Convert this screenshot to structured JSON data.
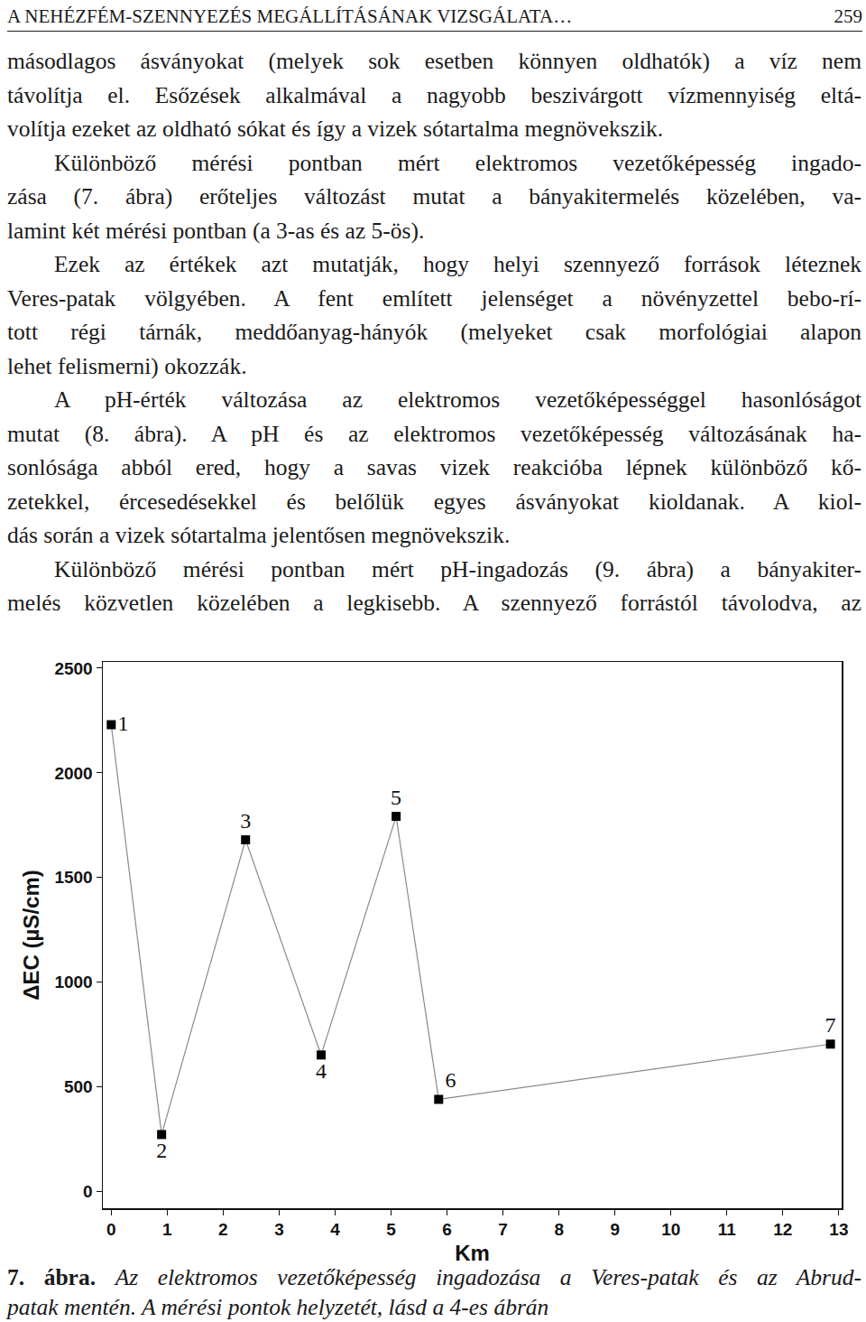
{
  "header": {
    "title": "A NEHÉZFÉM-SZENNYEZÉS MEGÁLLÍTÁSÁNAK VIZSGÁLATA…",
    "page": "259"
  },
  "paragraphs": [
    [
      "másodlagos ásványokat (melyek sok esetben könnyen oldhatók) a víz nem",
      "távolítja el. Esőzések alkalmával a nagyobb beszivárgott vízmennyiség eltá-",
      "volítja ezeket az oldható sókat és így a vizek sótartalma megnövekszik."
    ],
    [
      "Különböző mérési pontban mért elektromos vezetőképesség ingado-",
      "zása (7. ábra) erőteljes változást mutat a bányakitermelés közelében, va-",
      "lamint két mérési pontban (a 3-as és az 5-ös)."
    ],
    [
      "Ezek az értékek azt mutatják, hogy helyi szennyező források léteznek",
      "Veres-patak völgyében. A fent említett jelenséget a növényzettel bebo-rí-",
      "tott régi tárnák, meddőanyag-hányók (melyeket csak morfológiai alapon",
      "lehet felismerni) okozzák."
    ],
    [
      "A pH-érték változása az elektromos vezetőképességgel hasonlóságot",
      "mutat (8. ábra). A pH és az elektromos vezetőképesség változásának ha-",
      "sonlósága abból ered, hogy a savas vizek reakcióba lépnek különböző kő-",
      "zetekkel, ércesedésekkel és belőlük egyes ásványokat kioldanak. A kiol-",
      "dás során a vizek sótartalma jelentősen megnövekszik."
    ],
    [
      "Különböző mérési pontban mért pH-ingadozás (9. ábra) a bányakiter-",
      "melés közvetlen közelében a legkisebb. A szennyező forrástól távolodva, az"
    ]
  ],
  "chart_data": {
    "type": "scatter",
    "x_label": "Km",
    "y_label": "ΔEC (µS/cm)",
    "x": [
      0,
      0.9,
      2.4,
      3.75,
      5.09,
      5.85,
      12.85
    ],
    "values": [
      2230,
      272,
      1680,
      652,
      1792,
      440,
      704
    ],
    "point_labels": [
      "1",
      "2",
      "3",
      "4",
      "5",
      "6",
      "7"
    ],
    "color": "#000000",
    "marker": "square",
    "line_style": "solid",
    "xlim": [
      -0.15,
      13.05
    ],
    "xticks": [
      0,
      1,
      2,
      3,
      4,
      5,
      6,
      7,
      8,
      9,
      10,
      11,
      12,
      13
    ],
    "ylim": [
      -80,
      2530
    ],
    "yticks": [
      0,
      500,
      1000,
      1500,
      2000,
      2500
    ],
    "grid": false
  },
  "caption": {
    "label": "7. ábra.",
    "lines": [
      "Az elektromos vezetőképesség ingadozása a Veres-patak és az Abrud-",
      "patak mentén. A mérési pontok helyzetét, lásd a 4-es ábrán"
    ]
  }
}
